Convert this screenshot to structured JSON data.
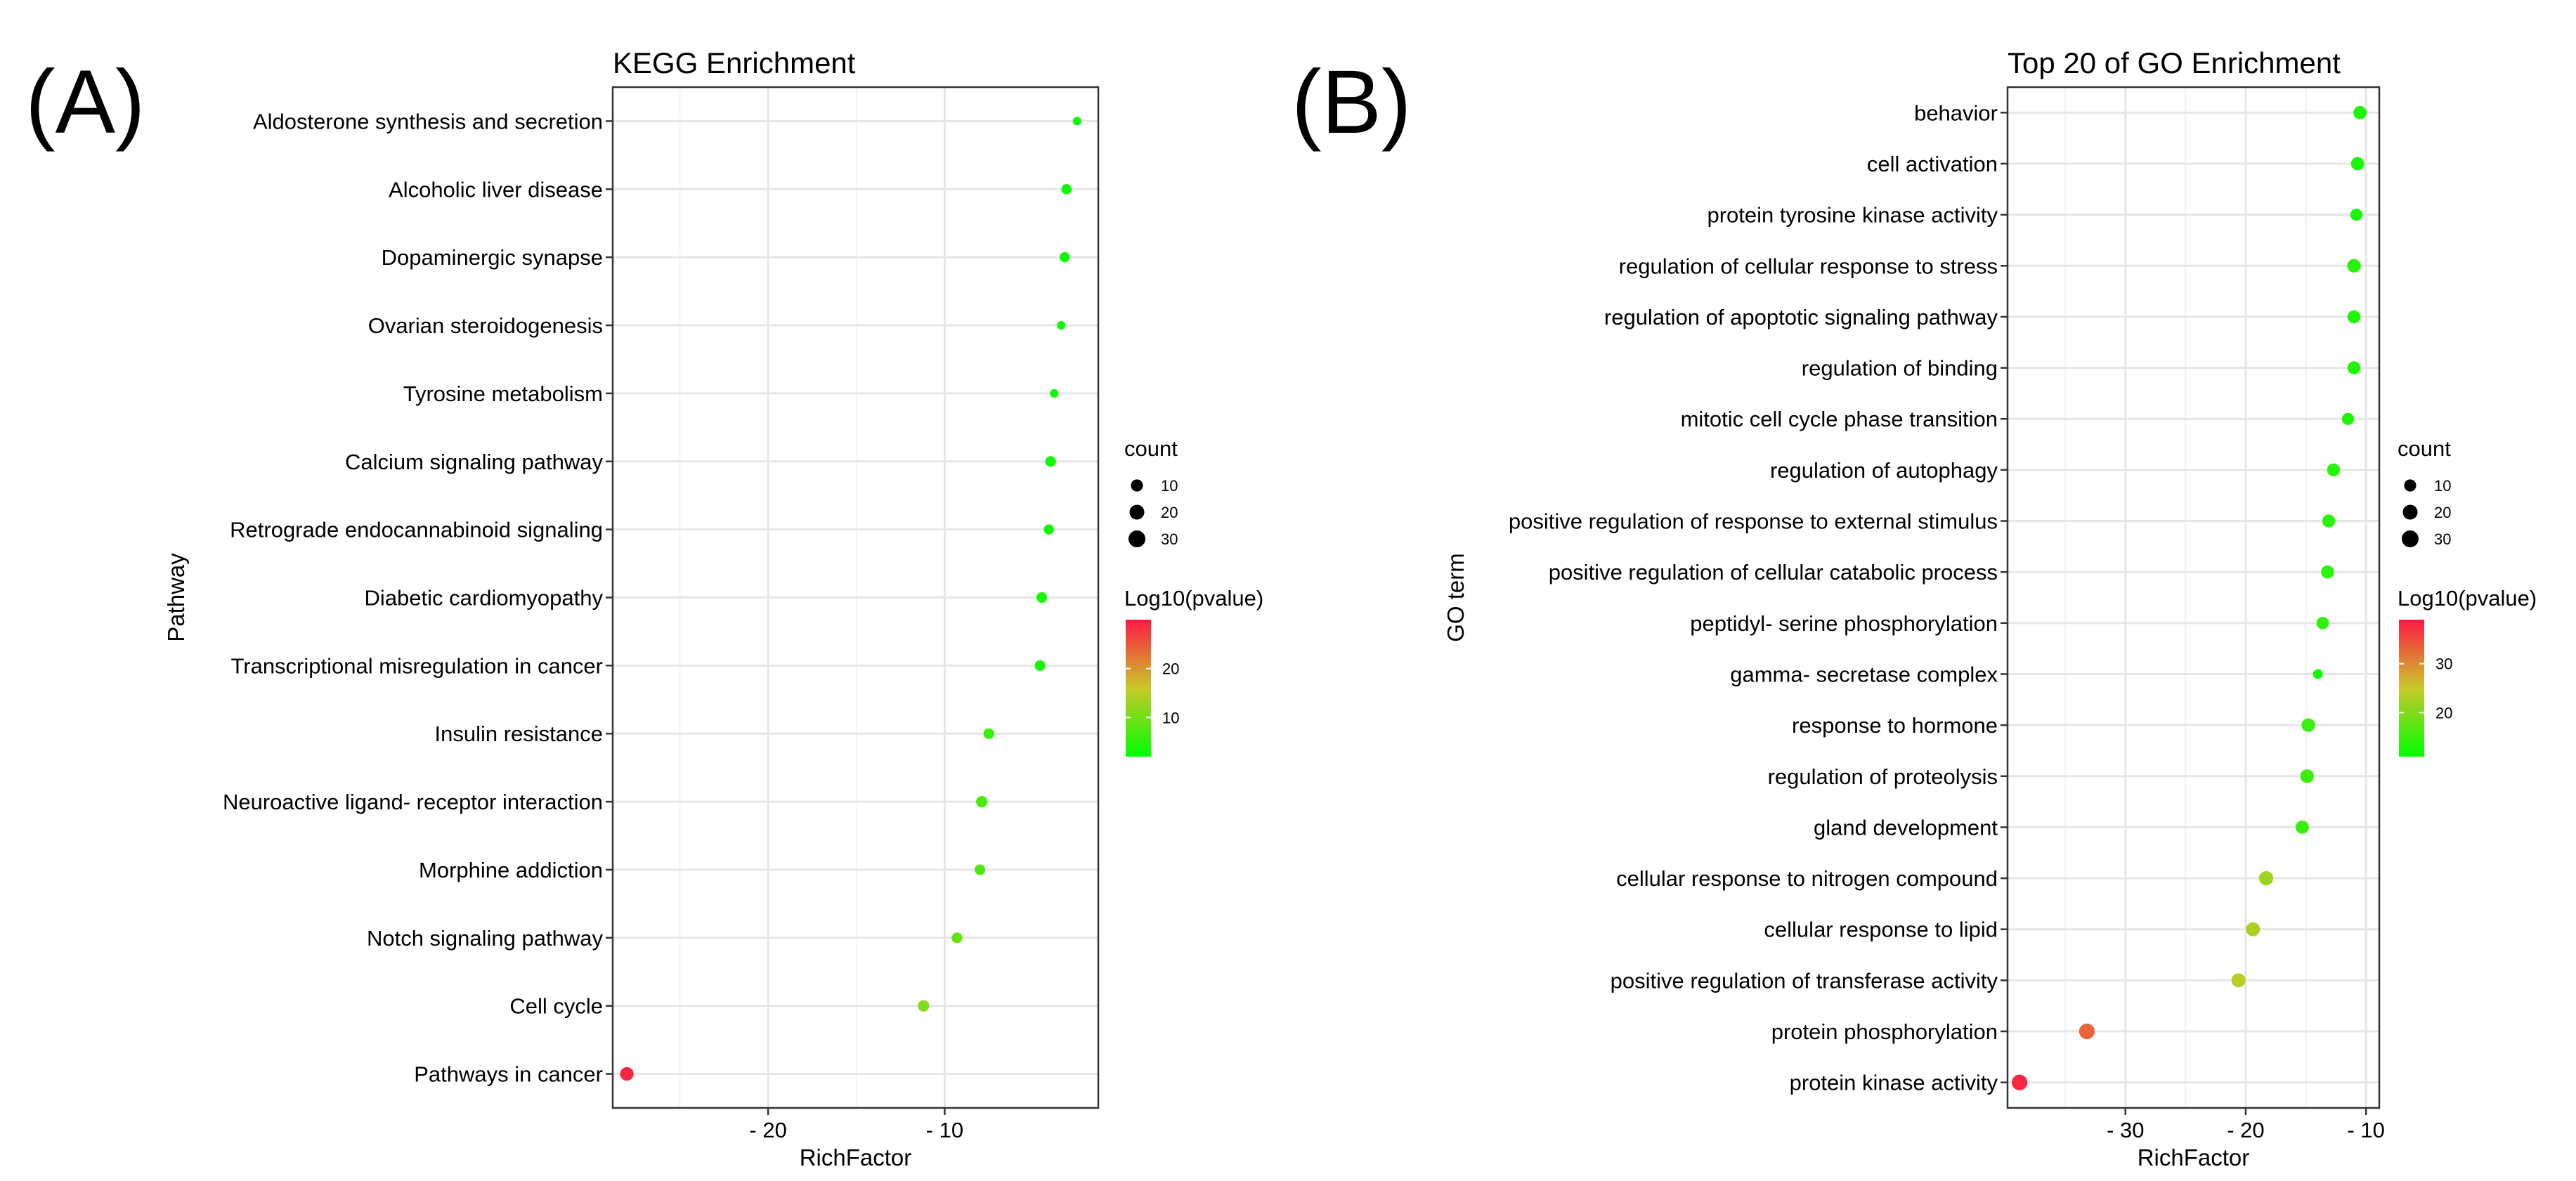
{
  "panels": {
    "a": {
      "label": "(A)"
    },
    "b": {
      "label": "(B)"
    }
  },
  "chart_data": [
    {
      "type": "scatter",
      "title": "KEGG Enrichment",
      "xlabel": "RichFactor",
      "ylabel": "Pathway",
      "xlim": [
        -28.8,
        -1.3
      ],
      "xticks": [
        -20,
        -10
      ],
      "xtick_labels": [
        "- 20",
        "- 10"
      ],
      "grid": true,
      "categories": [
        "Aldosterone synthesis and secretion",
        "Alcoholic liver disease",
        "Dopaminergic synapse",
        "Ovarian steroidogenesis",
        "Tyrosine metabolism",
        "Calcium signaling pathway",
        "Retrograde endocannabinoid signaling",
        "Diabetic cardiomyopathy",
        "Transcriptional misregulation in cancer",
        "Insulin resistance",
        "Neuroactive ligand- receptor interaction",
        "Morphine addiction",
        "Notch signaling pathway",
        "Cell cycle",
        "Pathways in cancer"
      ],
      "values": [
        -2.5,
        -3.1,
        -3.2,
        -3.4,
        -3.8,
        -4.0,
        -4.1,
        -4.5,
        -4.6,
        -7.5,
        -7.9,
        -8.0,
        -9.3,
        -11.2,
        -28.0
      ],
      "count": [
        2,
        5,
        5,
        2,
        2,
        6,
        5,
        6,
        6,
        6,
        8,
        6,
        6,
        8,
        15
      ],
      "log10_pvalue": [
        2.5,
        3.0,
        3.0,
        2.5,
        2.5,
        3.5,
        3.0,
        3.5,
        3.5,
        6.0,
        7.0,
        7.5,
        9.0,
        11.0,
        29.0
      ],
      "size_legend": {
        "title": "count",
        "values": [
          10,
          20,
          30
        ],
        "labels": [
          "10",
          "20",
          "30"
        ]
      },
      "color_legend": {
        "title": "Log10(pvalue)",
        "range": [
          2,
          30
        ],
        "ticks": [
          10,
          20
        ],
        "tick_labels": [
          "10",
          "20"
        ],
        "low_color": "#00ff00",
        "high_color": "#ff1a44"
      }
    },
    {
      "type": "scatter",
      "title": "Top 20 of GO Enrichment",
      "xlabel": "RichFactor",
      "ylabel": "GO term",
      "xlim": [
        -39.8,
        -8.9
      ],
      "xticks": [
        -30,
        -20,
        -10
      ],
      "xtick_labels": [
        "- 30",
        "- 20",
        "- 10"
      ],
      "grid": true,
      "categories": [
        "behavior",
        "cell activation",
        "protein tyrosine kinase activity",
        "regulation of cellular response to stress",
        "regulation of apoptotic signaling pathway",
        "regulation of binding",
        "mitotic cell cycle phase transition",
        "regulation of autophagy",
        "positive regulation of response to external stimulus",
        "positive regulation of cellular catabolic process",
        "peptidyl- serine phosphorylation",
        "gamma- secretase complex",
        "response to hormone",
        "regulation of proteolysis",
        "gland development",
        "cellular response to nitrogen compound",
        "cellular response to lipid",
        "positive regulation of transferase activity",
        "protein phosphorylation",
        "protein kinase activity"
      ],
      "values": [
        -10.5,
        -10.7,
        -10.8,
        -11.0,
        -11.0,
        -11.0,
        -11.5,
        -12.7,
        -13.1,
        -13.2,
        -13.6,
        -14.0,
        -14.8,
        -14.9,
        -15.3,
        -18.3,
        -19.4,
        -20.6,
        -33.2,
        -38.8
      ],
      "count": [
        14,
        14,
        10,
        15,
        13,
        13,
        10,
        13,
        13,
        13,
        11,
        4,
        15,
        15,
        14,
        18,
        17,
        17,
        24,
        24
      ],
      "log10_pvalue": [
        13.0,
        13.0,
        12.5,
        13.5,
        13.0,
        13.0,
        13.0,
        14.0,
        14.0,
        14.0,
        14.0,
        12.0,
        15.0,
        15.0,
        15.0,
        22.0,
        23.0,
        24.0,
        33.0,
        38.0
      ],
      "size_legend": {
        "title": "count",
        "values": [
          10,
          20,
          30
        ],
        "labels": [
          "10",
          "20",
          "30"
        ]
      },
      "color_legend": {
        "title": "Log10(pvalue)",
        "range": [
          11,
          39
        ],
        "ticks": [
          20,
          30
        ],
        "tick_labels": [
          "20",
          "30"
        ],
        "low_color": "#00ff00",
        "high_color": "#ff1a44"
      }
    }
  ]
}
